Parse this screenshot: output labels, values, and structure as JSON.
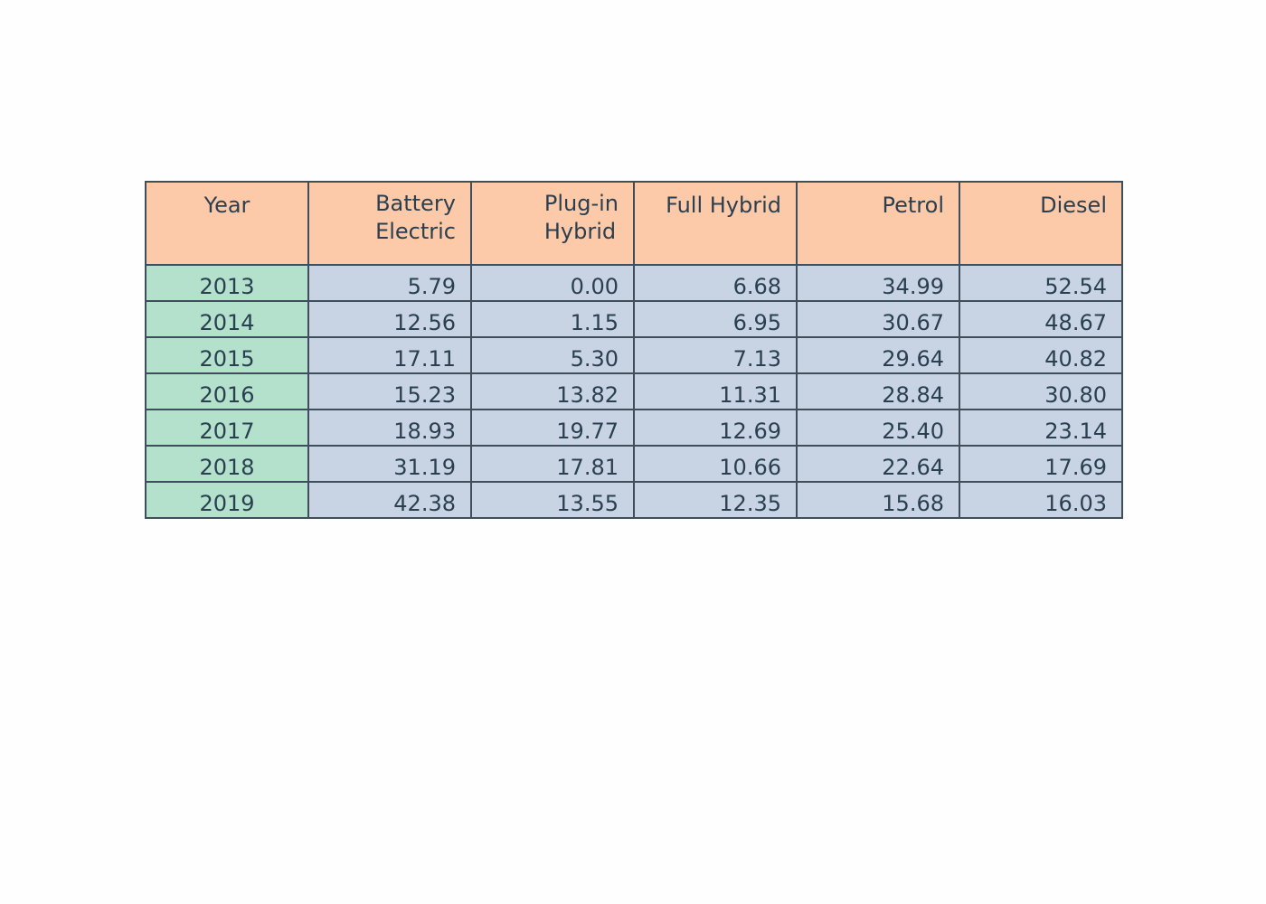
{
  "chart_data": {
    "type": "table",
    "columns": [
      "Year",
      "Battery Electric",
      "Plug-in Hybrid",
      "Full Hybrid",
      "Petrol",
      "Diesel"
    ],
    "header_lines": [
      [
        "Year"
      ],
      [
        "Battery",
        "Electric"
      ],
      [
        "Plug-in",
        "Hybrid"
      ],
      [
        "Full Hybrid"
      ],
      [
        "Petrol"
      ],
      [
        "Diesel"
      ]
    ],
    "rows": [
      [
        "2013",
        "5.79",
        "0.00",
        "6.68",
        "34.99",
        "52.54"
      ],
      [
        "2014",
        "12.56",
        "1.15",
        "6.95",
        "30.67",
        "48.67"
      ],
      [
        "2015",
        "17.11",
        "5.30",
        "7.13",
        "29.64",
        "40.82"
      ],
      [
        "2016",
        "15.23",
        "13.82",
        "11.31",
        "28.84",
        "30.80"
      ],
      [
        "2017",
        "18.93",
        "19.77",
        "12.69",
        "25.40",
        "23.14"
      ],
      [
        "2018",
        "31.19",
        "17.81",
        "10.66",
        "22.64",
        "17.69"
      ],
      [
        "2019",
        "42.38",
        "13.55",
        "12.35",
        "15.68",
        "16.03"
      ]
    ],
    "colors": {
      "header_fill": "#fdcaa9",
      "year_fill": "#b3e1cc",
      "cell_fill": "#c8d4e3",
      "border": "#3e4f5b",
      "text": "#2a3f4f"
    }
  }
}
